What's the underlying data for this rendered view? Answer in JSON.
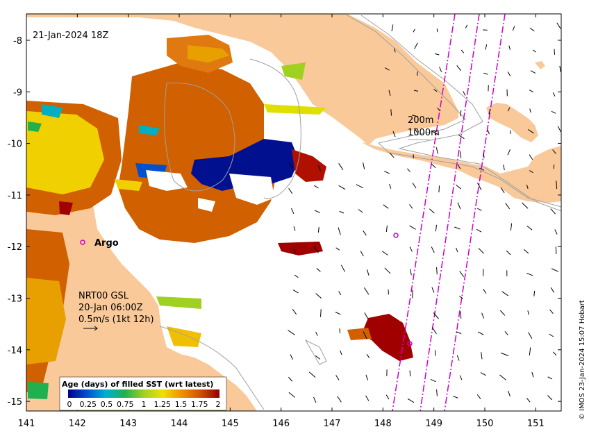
{
  "map": {
    "date_label": "21-Jan-2024 18Z",
    "x_ticks": [
      "141",
      "142",
      "143",
      "144",
      "145",
      "146",
      "147",
      "148",
      "149",
      "150",
      "151"
    ],
    "y_ticks": [
      "-8",
      "-9",
      "-10",
      "-11",
      "-12",
      "-13",
      "-14",
      "-15"
    ],
    "contour_labels": {
      "shallow": "200m",
      "deep": "1000m"
    },
    "argo_label": "Argo",
    "current_info": {
      "line1": "NRT00 GSL",
      "line2": "20-Jan 06:00Z",
      "line3": "0.5m/s (1kt 12h)"
    },
    "credit": "© IMOS 23-Jan-2024 15:07 Hobart",
    "colors": {
      "land": "#f9c99a",
      "ocean": "#ffffff",
      "track": "#cc00cc",
      "contour": "#a0a0a0"
    }
  },
  "legend": {
    "title": "Age (days) of filled SST (wrt latest)",
    "ticks": [
      "0",
      "0.25",
      "0.5",
      "0.75",
      "1",
      "1.25",
      "1.5",
      "1.75",
      "2"
    ],
    "gradient": [
      "#00008b",
      "#0050d0",
      "#00b0d0",
      "#20b050",
      "#a0d020",
      "#f0e000",
      "#f09000",
      "#d05000",
      "#900000"
    ]
  }
}
